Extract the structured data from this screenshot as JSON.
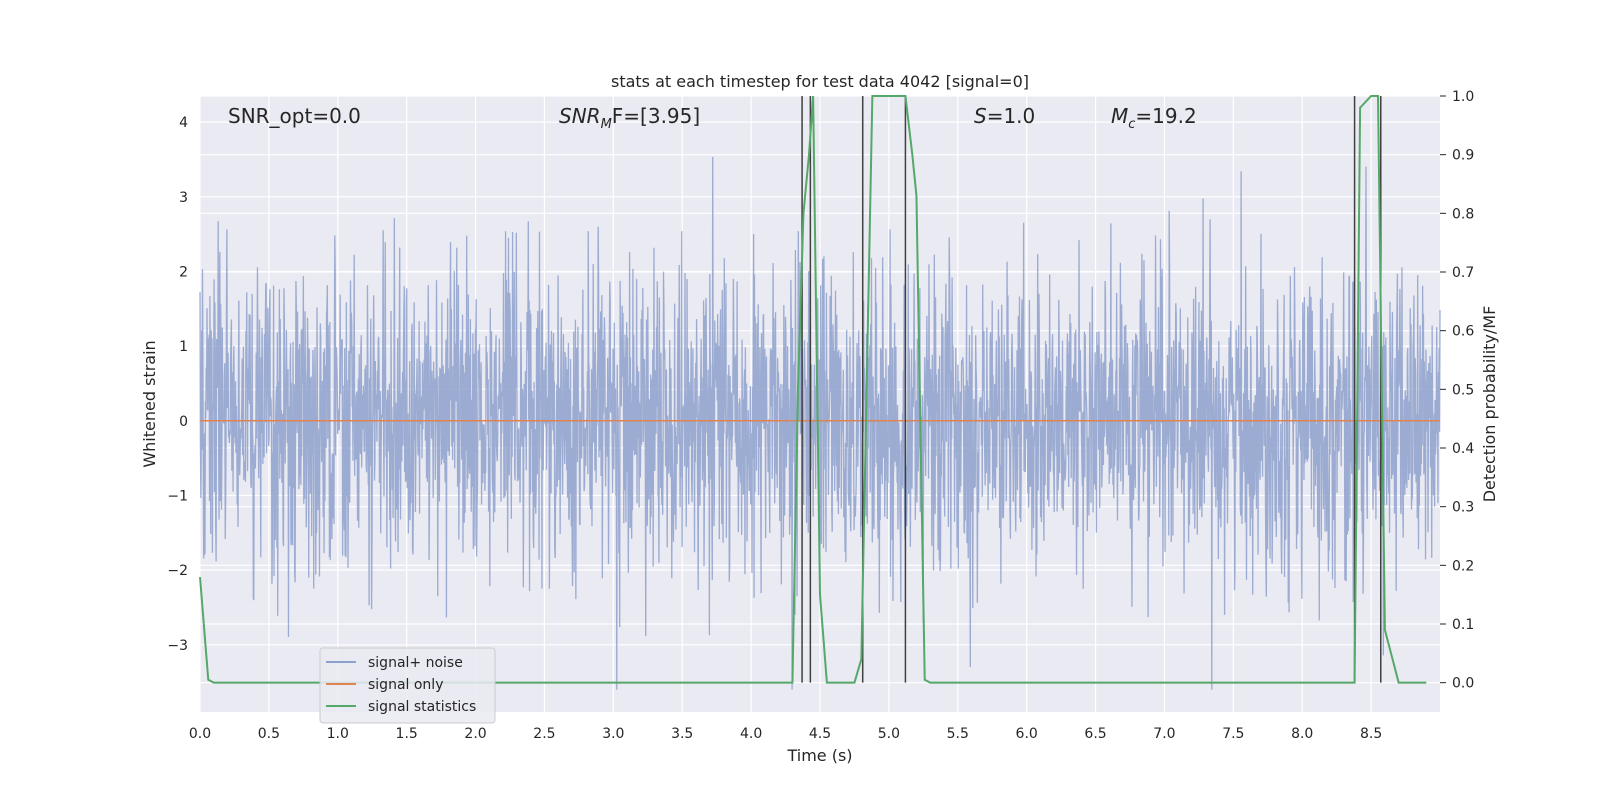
{
  "chart_data": {
    "type": "line",
    "title": "stats at each timestep for test data 4042 [signal=0]",
    "xlabel": "Time (s)",
    "ylabel_left": "Whitened strain",
    "ylabel_right": "Detection probability/MF",
    "xlim": [
      0.0,
      9.0
    ],
    "ylim_left": [
      -3.9,
      4.35
    ],
    "ylim_right": [
      -0.05,
      1.0
    ],
    "x_ticks": [
      "0.0",
      "0.5",
      "1.0",
      "1.5",
      "2.0",
      "2.5",
      "3.0",
      "3.5",
      "4.0",
      "4.5",
      "5.0",
      "5.5",
      "6.0",
      "6.5",
      "7.0",
      "7.5",
      "8.0",
      "8.5"
    ],
    "x_tick_values": [
      0.0,
      0.5,
      1.0,
      1.5,
      2.0,
      2.5,
      3.0,
      3.5,
      4.0,
      4.5,
      5.0,
      5.5,
      6.0,
      6.5,
      7.0,
      7.5,
      8.0,
      8.5
    ],
    "y_left_ticks": [
      "−3",
      "−2",
      "−1",
      "0",
      "1",
      "2",
      "3",
      "4"
    ],
    "y_left_tick_values": [
      -3,
      -2,
      -1,
      0,
      1,
      2,
      3,
      4
    ],
    "y_right_ticks": [
      "0.0",
      "0.1",
      "0.2",
      "0.3",
      "0.4",
      "0.5",
      "0.6",
      "0.7",
      "0.8",
      "0.9",
      "1.0"
    ],
    "y_right_tick_values": [
      0.0,
      0.1,
      0.2,
      0.3,
      0.4,
      0.5,
      0.6,
      0.7,
      0.8,
      0.9,
      1.0
    ],
    "grid": true,
    "legend_position": "lower-left",
    "annotations": {
      "snr_opt": "SNR_opt=0.0",
      "snr_mf_main": "SNR",
      "snr_mf_sub": "M",
      "snr_mf_rest": "F=[3.95]",
      "s_main": "S",
      "s_rest": "=1.0",
      "mc_main": "M",
      "mc_sub": "c",
      "mc_rest": "=19.2"
    },
    "series": [
      {
        "name": "signal+ noise",
        "color": "#8da0cb",
        "axis": "left",
        "envelope_max": 3.6,
        "envelope_min": -3.6
      },
      {
        "name": "signal only",
        "color": "#dd8452",
        "axis": "left",
        "y": 0.0
      },
      {
        "name": "signal statistics",
        "color": "#55a868",
        "axis": "right",
        "x": [
          0.0,
          0.06,
          0.1,
          4.3,
          4.34,
          4.38,
          4.42,
          4.45,
          4.5,
          4.55,
          4.75,
          4.8,
          4.88,
          5.12,
          5.17,
          5.2,
          5.26,
          5.3,
          8.38,
          8.42,
          8.5,
          8.55,
          8.6,
          8.7,
          8.9
        ],
        "y": [
          0.18,
          0.005,
          0.0,
          0.0,
          0.5,
          0.8,
          0.9,
          1.0,
          0.15,
          0.0,
          0.0,
          0.04,
          1.0,
          1.0,
          0.9,
          0.83,
          0.005,
          0.0,
          0.0,
          0.98,
          1.0,
          1.0,
          0.09,
          0.0,
          0.0
        ]
      }
    ],
    "vertical_lines_x": [
      4.37,
      4.43,
      4.81,
      5.12,
      8.38,
      8.57
    ],
    "vertical_lines_color": "#404040"
  }
}
